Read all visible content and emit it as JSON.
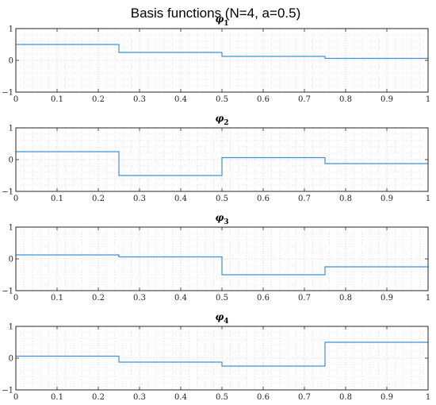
{
  "figure": {
    "title": "Basis functions (N=4, a=0.5)"
  },
  "colors": {
    "series": "#3f8fd2",
    "axes": "#262626",
    "grid": "#b0b0b0",
    "background": "#ffffff"
  },
  "chart_data": [
    {
      "type": "line",
      "step": true,
      "title": "φ",
      "title_subscript": "1",
      "x": [
        0,
        0.25,
        0.25,
        0.5,
        0.5,
        0.75,
        0.75,
        1
      ],
      "y": [
        0.5,
        0.5,
        0.25,
        0.25,
        0.125,
        0.125,
        0.0625,
        0.0625
      ],
      "xlim": [
        0,
        1
      ],
      "ylim": [
        -1,
        1
      ],
      "xticks": [
        0,
        0.1,
        0.2,
        0.3,
        0.4,
        0.5,
        0.6,
        0.7,
        0.8,
        0.9,
        1
      ],
      "xtick_labels": [
        "0",
        "0.1",
        "0.2",
        "0.3",
        "0.4",
        "0.5",
        "0.6",
        "0.7",
        "0.8",
        "0.9",
        "1"
      ],
      "yticks": [
        -1,
        0,
        1
      ],
      "ytick_labels": [
        "−1",
        "0",
        "1"
      ],
      "grid": true,
      "minor_grid": true
    },
    {
      "type": "line",
      "step": true,
      "title": "φ",
      "title_subscript": "2",
      "x": [
        0,
        0.25,
        0.25,
        0.5,
        0.5,
        0.75,
        0.75,
        1
      ],
      "y": [
        0.25,
        0.25,
        -0.5,
        -0.5,
        0.0625,
        0.0625,
        -0.125,
        -0.125
      ],
      "xlim": [
        0,
        1
      ],
      "ylim": [
        -1,
        1
      ],
      "xticks": [
        0,
        0.1,
        0.2,
        0.3,
        0.4,
        0.5,
        0.6,
        0.7,
        0.8,
        0.9,
        1
      ],
      "xtick_labels": [
        "0",
        "0.1",
        "0.2",
        "0.3",
        "0.4",
        "0.5",
        "0.6",
        "0.7",
        "0.8",
        "0.9",
        "1"
      ],
      "yticks": [
        -1,
        0,
        1
      ],
      "ytick_labels": [
        "−1",
        "0",
        "1"
      ],
      "grid": true,
      "minor_grid": true
    },
    {
      "type": "line",
      "step": true,
      "title": "φ",
      "title_subscript": "3",
      "x": [
        0,
        0.25,
        0.25,
        0.5,
        0.5,
        0.75,
        0.75,
        1
      ],
      "y": [
        0.125,
        0.125,
        0.0625,
        0.0625,
        -0.5,
        -0.5,
        -0.25,
        -0.25
      ],
      "xlim": [
        0,
        1
      ],
      "ylim": [
        -1,
        1
      ],
      "xticks": [
        0,
        0.1,
        0.2,
        0.3,
        0.4,
        0.5,
        0.6,
        0.7,
        0.8,
        0.9,
        1
      ],
      "xtick_labels": [
        "0",
        "0.1",
        "0.2",
        "0.3",
        "0.4",
        "0.5",
        "0.6",
        "0.7",
        "0.8",
        "0.9",
        "1"
      ],
      "yticks": [
        -1,
        0,
        1
      ],
      "ytick_labels": [
        "−1",
        "0",
        "1"
      ],
      "grid": true,
      "minor_grid": true
    },
    {
      "type": "line",
      "step": true,
      "title": "φ",
      "title_subscript": "4",
      "x": [
        0,
        0.25,
        0.25,
        0.5,
        0.5,
        0.75,
        0.75,
        1
      ],
      "y": [
        0.0625,
        0.0625,
        -0.125,
        -0.125,
        -0.25,
        -0.25,
        0.5,
        0.5
      ],
      "xlim": [
        0,
        1
      ],
      "ylim": [
        -1,
        1
      ],
      "xticks": [
        0,
        0.1,
        0.2,
        0.3,
        0.4,
        0.5,
        0.6,
        0.7,
        0.8,
        0.9,
        1
      ],
      "xtick_labels": [
        "0",
        "0.1",
        "0.2",
        "0.3",
        "0.4",
        "0.5",
        "0.6",
        "0.7",
        "0.8",
        "0.9",
        "1"
      ],
      "yticks": [
        -1,
        0,
        1
      ],
      "ytick_labels": [
        "−1",
        "0",
        "1"
      ],
      "grid": true,
      "minor_grid": true
    }
  ]
}
